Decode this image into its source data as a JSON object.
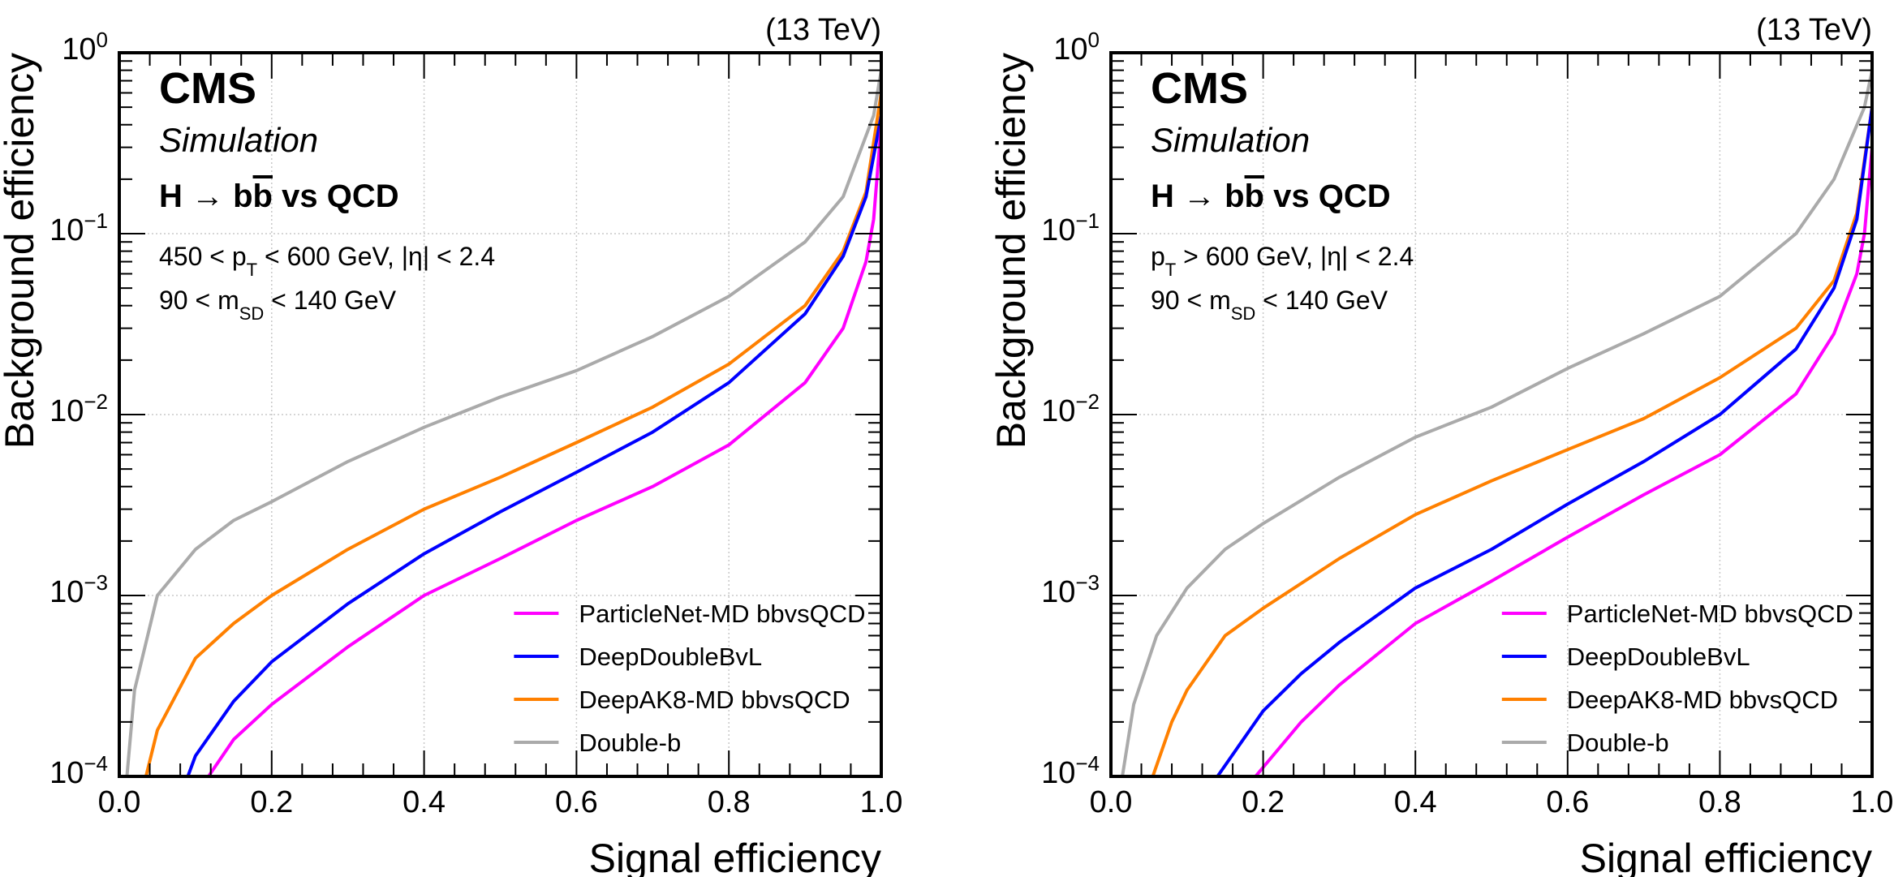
{
  "chart_data": [
    {
      "type": "line",
      "title": "H → bb̄ vs QCD",
      "experiment_label": "CMS",
      "sublabel": "Simulation",
      "energy_label": "(13 TeV)",
      "process_label": {
        "prefix": "H → b",
        "bbar": "b",
        "suffix": " vs QCD"
      },
      "cut_lines": [
        {
          "text": "450 < p",
          "sub": "T",
          "rest": " < 600 GeV, |η| < 2.4"
        },
        {
          "text": "90 < m",
          "sub": "SD",
          "rest": " < 140 GeV"
        }
      ],
      "xlabel": "Signal efficiency",
      "ylabel": "Background efficiency",
      "xlim": [
        0.0,
        1.0
      ],
      "ylim": [
        0.0001,
        1
      ],
      "yscale": "log",
      "xticks": [
        "0.0",
        "0.2",
        "0.4",
        "0.6",
        "0.8",
        "1.0"
      ],
      "yticks": [
        {
          "base": "10",
          "exp": "0"
        },
        {
          "base": "10",
          "exp": "−1"
        },
        {
          "base": "10",
          "exp": "−2"
        },
        {
          "base": "10",
          "exp": "−3"
        },
        {
          "base": "10",
          "exp": "−4"
        }
      ],
      "grid": true,
      "legend_position": "bottom-right",
      "series": [
        {
          "name": "ParticleNet-MD bbvsQCD",
          "color": "#ff00ff",
          "x": [
            0.117,
            0.15,
            0.2,
            0.3,
            0.4,
            0.5,
            0.6,
            0.7,
            0.8,
            0.9,
            0.95,
            0.98,
            0.99,
            1.0
          ],
          "y": [
            0.0001,
            0.00016,
            0.00025,
            0.00052,
            0.001,
            0.0016,
            0.0026,
            0.004,
            0.0068,
            0.015,
            0.03,
            0.07,
            0.12,
            0.4
          ]
        },
        {
          "name": "DeepDoubleBvL",
          "color": "#0000ff",
          "x": [
            0.09,
            0.1,
            0.15,
            0.2,
            0.3,
            0.4,
            0.5,
            0.6,
            0.7,
            0.8,
            0.9,
            0.95,
            0.98,
            1.0
          ],
          "y": [
            0.0001,
            0.00013,
            0.00026,
            0.00043,
            0.0009,
            0.0017,
            0.0029,
            0.0048,
            0.008,
            0.015,
            0.036,
            0.075,
            0.16,
            0.45
          ]
        },
        {
          "name": "DeepAK8-MD bbvsQCD",
          "color": "#ff8000",
          "x": [
            0.035,
            0.05,
            0.1,
            0.15,
            0.2,
            0.3,
            0.4,
            0.5,
            0.6,
            0.7,
            0.8,
            0.9,
            0.95,
            0.98,
            1.0
          ],
          "y": [
            0.0001,
            0.00018,
            0.00045,
            0.0007,
            0.001,
            0.0018,
            0.003,
            0.0045,
            0.007,
            0.011,
            0.019,
            0.04,
            0.08,
            0.17,
            0.6
          ]
        },
        {
          "name": "Double-b",
          "color": "#aaaaaa",
          "x": [
            0.01,
            0.02,
            0.05,
            0.1,
            0.15,
            0.2,
            0.3,
            0.4,
            0.5,
            0.6,
            0.7,
            0.8,
            0.9,
            0.95,
            0.99,
            1.0
          ],
          "y": [
            0.0001,
            0.0003,
            0.001,
            0.0018,
            0.0026,
            0.0033,
            0.0055,
            0.0085,
            0.0125,
            0.0175,
            0.027,
            0.045,
            0.09,
            0.16,
            0.45,
            0.8
          ]
        }
      ]
    },
    {
      "type": "line",
      "title": "H → bb̄ vs QCD",
      "experiment_label": "CMS",
      "sublabel": "Simulation",
      "energy_label": "(13 TeV)",
      "process_label": {
        "prefix": "H → b",
        "bbar": "b",
        "suffix": " vs QCD"
      },
      "cut_lines": [
        {
          "text": "p",
          "sub": "T",
          "rest": " > 600 GeV,   |η| < 2.4"
        },
        {
          "text": "90 < m",
          "sub": "SD",
          "rest": " < 140 GeV"
        }
      ],
      "xlabel": "Signal efficiency",
      "ylabel": "Background efficiency",
      "xlim": [
        0.0,
        1.0
      ],
      "ylim": [
        0.0001,
        1
      ],
      "yscale": "log",
      "xticks": [
        "0.0",
        "0.2",
        "0.4",
        "0.6",
        "0.8",
        "1.0"
      ],
      "yticks": [
        {
          "base": "10",
          "exp": "0"
        },
        {
          "base": "10",
          "exp": "−1"
        },
        {
          "base": "10",
          "exp": "−2"
        },
        {
          "base": "10",
          "exp": "−3"
        },
        {
          "base": "10",
          "exp": "−4"
        }
      ],
      "grid": true,
      "legend_position": "bottom-right",
      "series": [
        {
          "name": "ParticleNet-MD bbvsQCD",
          "color": "#ff00ff",
          "x": [
            0.19,
            0.25,
            0.3,
            0.4,
            0.5,
            0.6,
            0.7,
            0.8,
            0.9,
            0.95,
            0.98,
            0.99,
            1.0
          ],
          "y": [
            0.0001,
            0.0002,
            0.00032,
            0.0007,
            0.0012,
            0.0021,
            0.0036,
            0.006,
            0.013,
            0.028,
            0.06,
            0.1,
            0.3
          ]
        },
        {
          "name": "DeepDoubleBvL",
          "color": "#0000ff",
          "x": [
            0.14,
            0.2,
            0.25,
            0.3,
            0.4,
            0.5,
            0.6,
            0.7,
            0.8,
            0.9,
            0.95,
            0.98,
            1.0
          ],
          "y": [
            0.0001,
            0.00023,
            0.00037,
            0.00055,
            0.0011,
            0.0018,
            0.0032,
            0.0055,
            0.01,
            0.023,
            0.05,
            0.12,
            0.5
          ]
        },
        {
          "name": "DeepAK8-MD bbvsQCD",
          "color": "#ff8000",
          "x": [
            0.055,
            0.08,
            0.1,
            0.15,
            0.2,
            0.3,
            0.4,
            0.5,
            0.6,
            0.7,
            0.8,
            0.9,
            0.95,
            0.98,
            1.0
          ],
          "y": [
            0.0001,
            0.0002,
            0.0003,
            0.0006,
            0.00085,
            0.0016,
            0.0028,
            0.0043,
            0.0064,
            0.0095,
            0.016,
            0.03,
            0.055,
            0.13,
            0.5
          ]
        },
        {
          "name": "Double-b",
          "color": "#aaaaaa",
          "x": [
            0.015,
            0.03,
            0.06,
            0.1,
            0.15,
            0.2,
            0.3,
            0.4,
            0.5,
            0.6,
            0.7,
            0.8,
            0.9,
            0.95,
            0.99,
            1.0
          ],
          "y": [
            0.0001,
            0.00025,
            0.0006,
            0.0011,
            0.0018,
            0.0025,
            0.0045,
            0.0075,
            0.011,
            0.018,
            0.028,
            0.045,
            0.1,
            0.2,
            0.5,
            0.8
          ]
        }
      ]
    }
  ]
}
